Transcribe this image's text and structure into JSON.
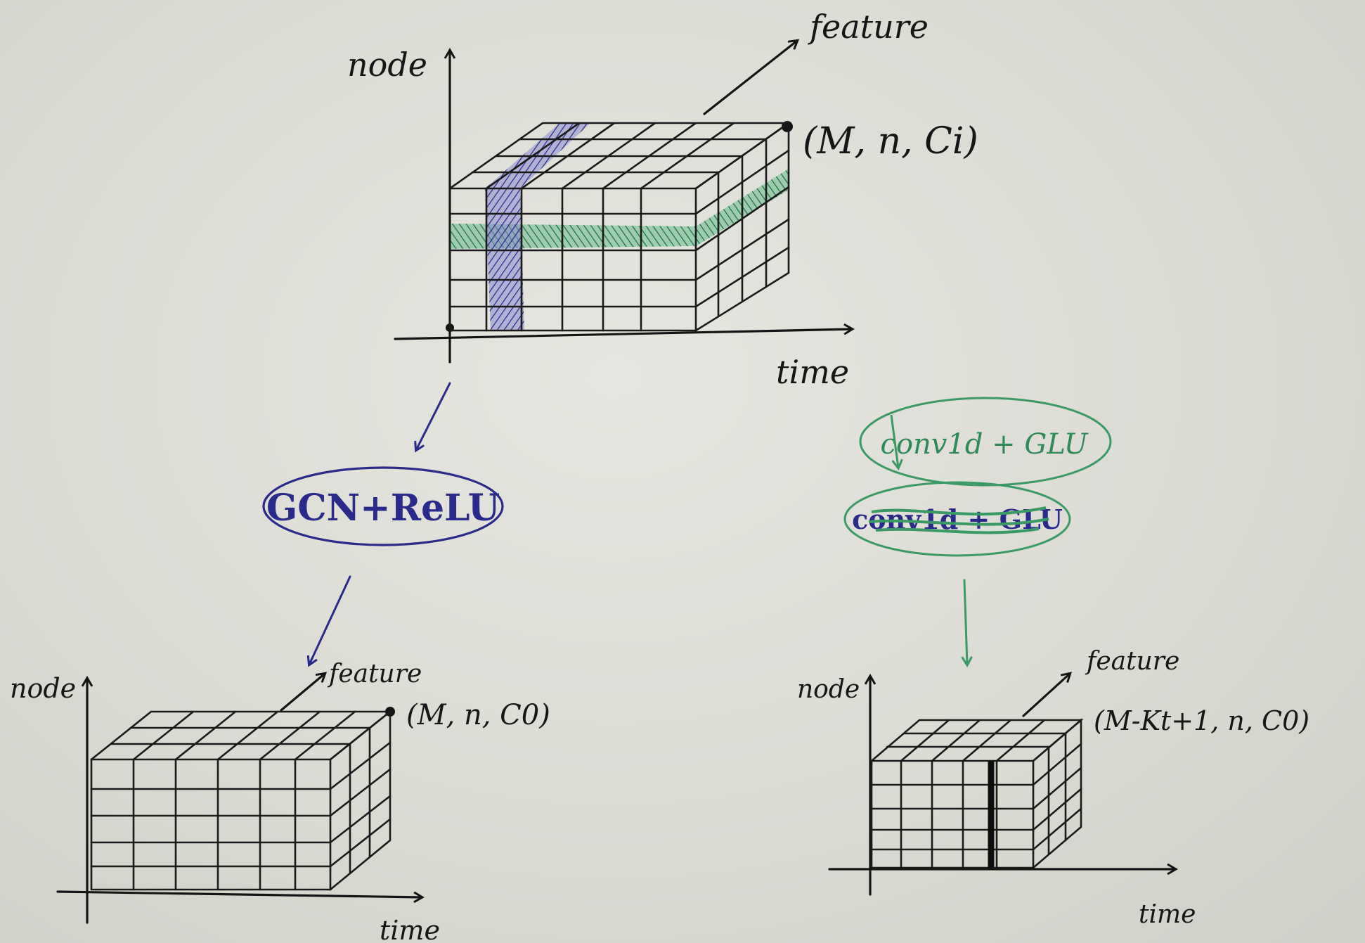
{
  "diagram": {
    "top_block": {
      "axis_node": "node",
      "axis_time": "time",
      "axis_feature": "feature",
      "shape_label": "(M, n, Ci)"
    },
    "left_op": {
      "label": "GCN+ReLU",
      "color": "#2a2a8a"
    },
    "right_op": {
      "label": "conv1d + GLU",
      "struck_label": "conv1d + GLU",
      "color": "#2e8b57"
    },
    "bottom_left_block": {
      "axis_node": "node",
      "axis_time": "time",
      "axis_feature": "feature",
      "shape_label": "(M, n, C0)"
    },
    "bottom_right_block": {
      "axis_node": "node",
      "axis_time": "time",
      "axis_feature": "feature",
      "shape_label": "(M-Kt+1, n, C0)"
    },
    "colors": {
      "ink": "#141414",
      "spatial_highlight": "#2a2a8a",
      "temporal_highlight": "#2e8b57",
      "paper": "#dcdcd6"
    }
  }
}
